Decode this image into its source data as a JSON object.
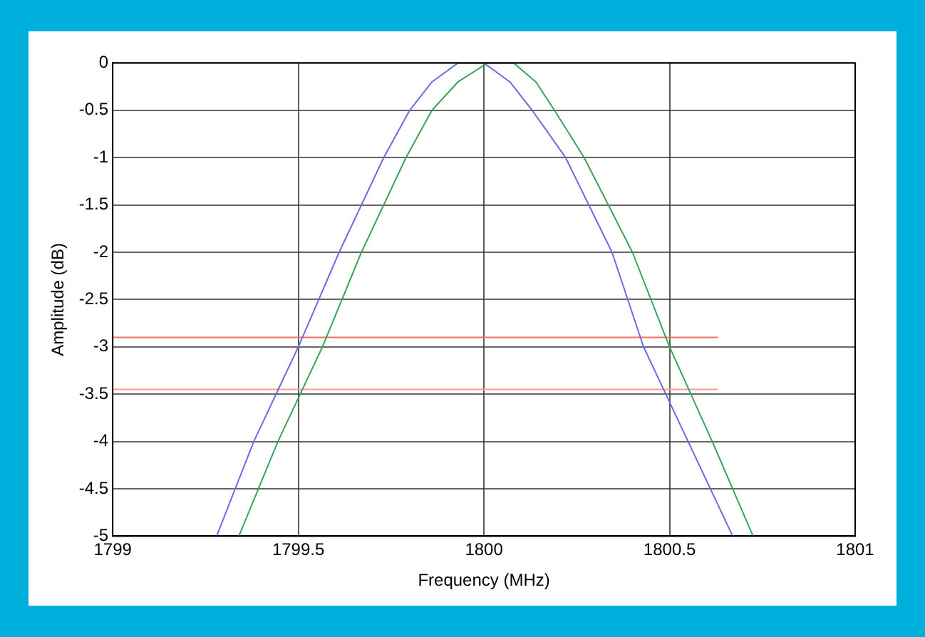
{
  "chart_data": {
    "type": "line",
    "xlabel": "Frequency (MHz)",
    "ylabel": "Amplitude (dB)",
    "xlim": [
      1799,
      1801
    ],
    "xticks": [
      1799,
      1799.5,
      1800,
      1800.5,
      1801
    ],
    "ylim": [
      -5,
      0
    ],
    "yticks": [
      -5,
      -4.5,
      -4,
      -3.5,
      -3,
      -2.5,
      -2,
      -1.5,
      -1,
      -0.5,
      0
    ],
    "grid": true,
    "legend": false,
    "marker": "none",
    "line_style": "solid",
    "series": [
      {
        "color": "#6b6be6",
        "x": [
          1799.28,
          1799.38,
          1799.44,
          1799.5,
          1799.61,
          1799.73,
          1799.8,
          1799.86,
          1799.93,
          1800,
          1800.07,
          1800.13,
          1800.22,
          1800.345,
          1800.43,
          1800.55,
          1800.67
        ],
        "values": [
          -5,
          -4,
          -3.5,
          -3,
          -2,
          -1,
          -0.5,
          -0.2,
          0,
          0,
          -0.2,
          -0.5,
          -1,
          -2,
          -3,
          -4,
          -5
        ]
      },
      {
        "color": "#3aa35a",
        "x": [
          1799.34,
          1799.445,
          1799.565,
          1799.67,
          1799.79,
          1799.86,
          1799.93,
          1800.01,
          1800.08,
          1800.14,
          1800.19,
          1800.27,
          1800.4,
          1800.5,
          1800.615,
          1800.725
        ],
        "values": [
          -5,
          -4,
          -3,
          -2,
          -1,
          -0.5,
          -0.2,
          0,
          0,
          -0.2,
          -0.5,
          -1,
          -2,
          -3,
          -4,
          -5
        ]
      },
      {
        "color": "#e8735a",
        "x": [
          1799,
          1800.63
        ],
        "values": [
          -2.9,
          -2.9
        ]
      },
      {
        "color": "#f5a08a",
        "x": [
          1799,
          1800.63
        ],
        "values": [
          -3.45,
          -3.45
        ]
      }
    ]
  }
}
